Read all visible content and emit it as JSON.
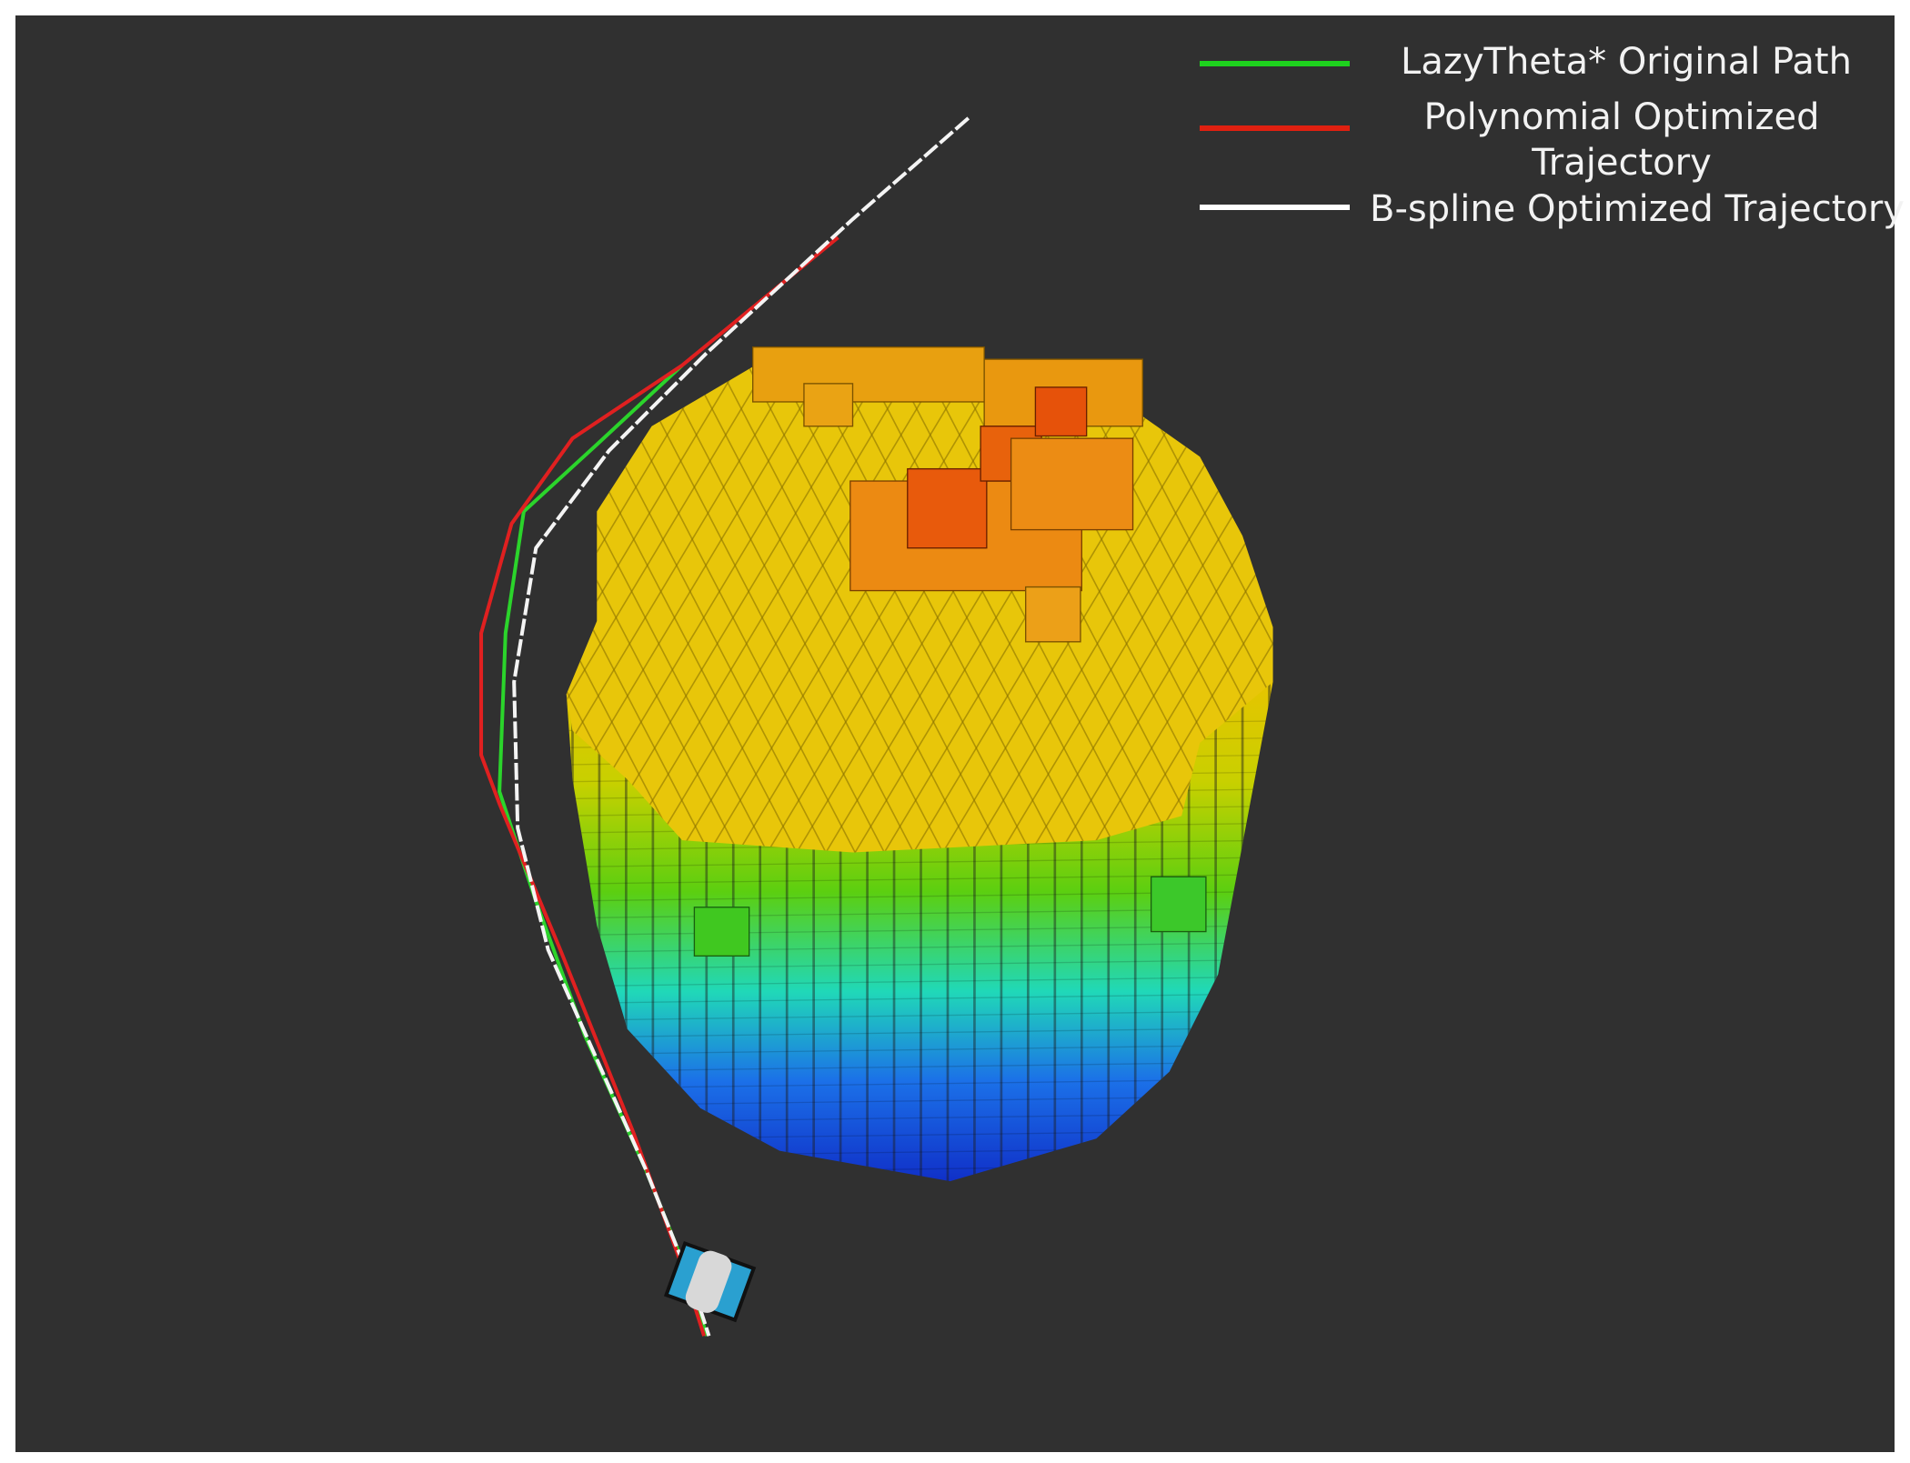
{
  "legend": {
    "items": [
      {
        "label": "LazyTheta* Original Path"
      },
      {
        "label": [
          "Polynomial Optimized",
          "Trajectory"
        ]
      },
      {
        "label": "B-spline Optimized Trajectory"
      }
    ]
  }
}
